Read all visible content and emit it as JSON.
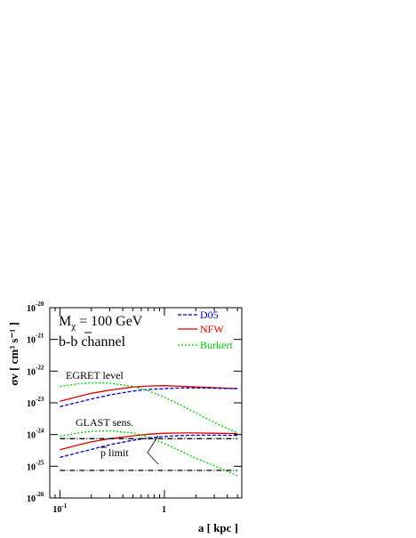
{
  "chart_data": {
    "type": "line",
    "xlabel": "a [ kpc ]",
    "ylabel": "σv [ cm³ s⁻¹ ]",
    "x_scale": "log",
    "y_scale": "log",
    "xlim": [
      0.08,
      5.5
    ],
    "ylim": [
      1e-26,
      1e-20
    ],
    "x_ticks": [
      {
        "base": "10",
        "exp": "-1",
        "value": 0.1
      },
      {
        "base": "1",
        "exp": "",
        "value": 1
      }
    ],
    "y_ticks": [
      {
        "base": "10",
        "exp": "-20",
        "value": -20
      },
      {
        "base": "10",
        "exp": "-21",
        "value": -21
      },
      {
        "base": "10",
        "exp": "-22",
        "value": -22
      },
      {
        "base": "10",
        "exp": "-23",
        "value": -23
      },
      {
        "base": "10",
        "exp": "-24",
        "value": -24
      },
      {
        "base": "10",
        "exp": "-25",
        "value": -25
      },
      {
        "base": "10",
        "exp": "-26",
        "value": -26
      }
    ],
    "annotations": {
      "mass": "Mχ = 100 GeV",
      "mass_base": "M",
      "mass_sub": "χ",
      "mass_rest": " = 100 GeV",
      "channel_b1": "b-",
      "channel_b2": "b",
      "channel_rest": " channel",
      "egret": "EGRET level",
      "glast": "GLAST sens.",
      "pbar_p": "p",
      "pbar_rest": " limit"
    },
    "legend": {
      "position": "top-right",
      "entries": [
        {
          "label": "D05",
          "color": "#0000cc",
          "dash": "4,2"
        },
        {
          "label": "NFW",
          "color": "#dd0000",
          "dash": ""
        },
        {
          "label": "Burkert",
          "color": "#00cc00",
          "dash": "2,2"
        }
      ]
    },
    "series": [
      {
        "name": "NFW",
        "group": "EGRET",
        "color": "#dd0000",
        "dash": "",
        "x": [
          0.1,
          0.15,
          0.2,
          0.3,
          0.5,
          0.7,
          1.0,
          1.5,
          2.0,
          3.0,
          5.0
        ],
        "y": [
          -22.95,
          -22.8,
          -22.7,
          -22.6,
          -22.5,
          -22.47,
          -22.46,
          -22.48,
          -22.5,
          -22.52,
          -22.55
        ]
      },
      {
        "name": "D05",
        "group": "EGRET",
        "color": "#0000cc",
        "dash": "4,2",
        "x": [
          0.1,
          0.15,
          0.2,
          0.3,
          0.5,
          0.7,
          1.0,
          1.5,
          2.0,
          3.0,
          5.0
        ],
        "y": [
          -23.12,
          -22.98,
          -22.88,
          -22.75,
          -22.63,
          -22.58,
          -22.55,
          -22.53,
          -22.53,
          -22.54,
          -22.55
        ]
      },
      {
        "name": "Burkert",
        "group": "EGRET",
        "color": "#00cc00",
        "dash": "2,2",
        "x": [
          0.1,
          0.15,
          0.2,
          0.3,
          0.5,
          0.7,
          1.0,
          1.5,
          2.0,
          3.0,
          5.0
        ],
        "y": [
          -22.48,
          -22.4,
          -22.37,
          -22.38,
          -22.48,
          -22.62,
          -22.82,
          -23.1,
          -23.32,
          -23.62,
          -23.95
        ]
      },
      {
        "name": "NFW",
        "group": "GLAST",
        "color": "#dd0000",
        "dash": "",
        "x": [
          0.1,
          0.15,
          0.2,
          0.3,
          0.5,
          0.7,
          1.0,
          1.5,
          2.0,
          3.0,
          5.0
        ],
        "y": [
          -24.48,
          -24.33,
          -24.23,
          -24.13,
          -24.04,
          -23.99,
          -23.96,
          -23.95,
          -23.95,
          -23.96,
          -23.97
        ]
      },
      {
        "name": "D05",
        "group": "GLAST",
        "color": "#0000cc",
        "dash": "4,2",
        "x": [
          0.1,
          0.15,
          0.2,
          0.3,
          0.5,
          0.7,
          1.0,
          1.5,
          2.0,
          3.0,
          5.0
        ],
        "y": [
          -24.72,
          -24.57,
          -24.47,
          -24.32,
          -24.18,
          -24.11,
          -24.06,
          -24.03,
          -24.02,
          -24.02,
          -24.03
        ]
      },
      {
        "name": "Burkert",
        "group": "GLAST",
        "color": "#00cc00",
        "dash": "2,2",
        "x": [
          0.1,
          0.15,
          0.2,
          0.3,
          0.5,
          0.7,
          1.0,
          1.5,
          2.0,
          3.0,
          5.0
        ],
        "y": [
          -24.05,
          -23.95,
          -23.9,
          -23.88,
          -23.95,
          -24.08,
          -24.28,
          -24.55,
          -24.75,
          -24.98,
          -25.3
        ]
      },
      {
        "name": "pbar limit upper",
        "group": "limit",
        "color": "#000000",
        "dash": "6,2,1,2",
        "x": [
          0.1,
          5.0
        ],
        "y": [
          -24.13,
          -24.13
        ]
      },
      {
        "name": "pbar limit lower",
        "group": "limit",
        "color": "#000000",
        "dash": "6,2,1,2",
        "x": [
          0.1,
          5.0
        ],
        "y": [
          -25.13,
          -25.13
        ]
      }
    ]
  }
}
